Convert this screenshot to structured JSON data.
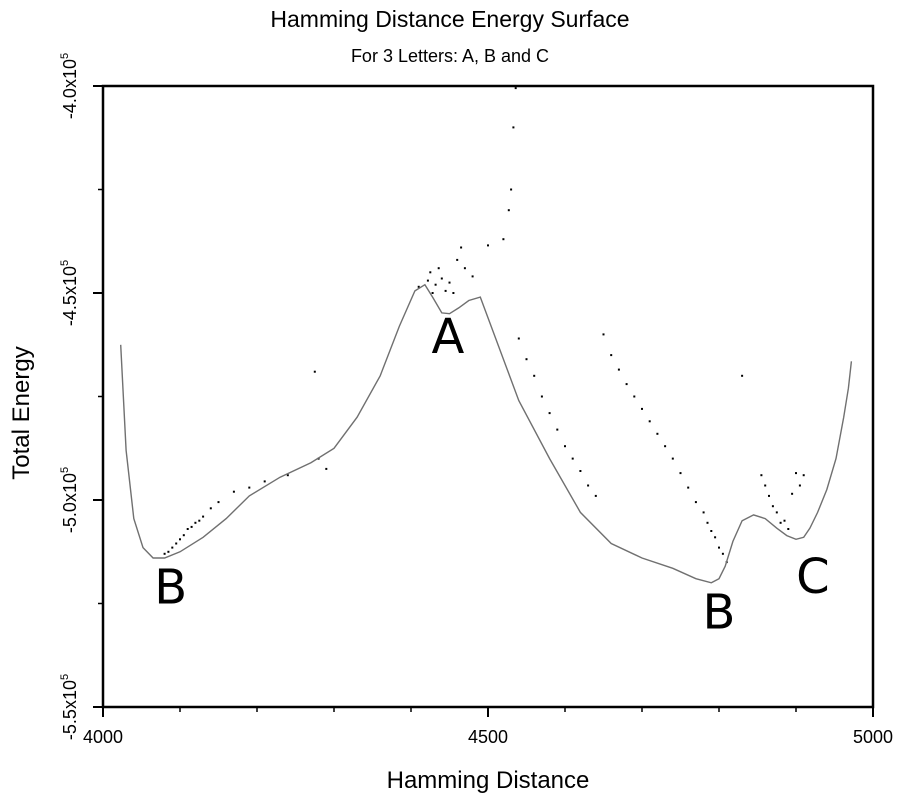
{
  "chart_data": {
    "type": "line",
    "title": "Hamming Distance Energy Surface",
    "subtitle": "For 3 Letters: A, B and C",
    "xlabel": "Hamming Distance",
    "ylabel": "Total Energy",
    "xlim": [
      4000,
      5000
    ],
    "ylim": [
      -550000,
      -400000
    ],
    "x_ticks": [
      {
        "value": 4000,
        "label": "4000"
      },
      {
        "value": 4500,
        "label": "4500"
      },
      {
        "value": 5000,
        "label": "5000"
      }
    ],
    "x_minor_ticks": [
      4100,
      4200,
      4300,
      4400,
      4600,
      4700,
      4800,
      4900
    ],
    "y_ticks": [
      {
        "value": -400000,
        "mantissa": "-4.0x10",
        "exponent": "5"
      },
      {
        "value": -450000,
        "mantissa": "-4.5x10",
        "exponent": "5"
      },
      {
        "value": -500000,
        "mantissa": "-5.0x10",
        "exponent": "5"
      },
      {
        "value": -550000,
        "mantissa": "-5.5x10",
        "exponent": "5"
      }
    ],
    "y_minor_ticks": [
      -425000,
      -475000,
      -525000
    ],
    "series": [
      {
        "name": "energy-surface",
        "x": [
          4023,
          4030,
          4040,
          4052,
          4065,
          4080,
          4100,
          4130,
          4160,
          4190,
          4230,
          4270,
          4300,
          4330,
          4360,
          4385,
          4405,
          4418,
          4428,
          4440,
          4450,
          4462,
          4475,
          4490,
          4510,
          4540,
          4580,
          4620,
          4660,
          4700,
          4740,
          4770,
          4790,
          4800,
          4808,
          4818,
          4830,
          4845,
          4860,
          4875,
          4888,
          4900,
          4910,
          4918,
          4928,
          4940,
          4952,
          4962,
          4968,
          4972
        ],
        "y": [
          -462500,
          -488000,
          -504500,
          -511500,
          -514000,
          -514000,
          -512500,
          -509000,
          -504500,
          -499000,
          -494500,
          -491000,
          -487500,
          -480000,
          -470000,
          -458000,
          -449500,
          -448000,
          -451000,
          -454800,
          -455000,
          -453600,
          -451800,
          -451000,
          -461000,
          -476000,
          -490000,
          -503000,
          -510500,
          -514000,
          -516500,
          -519000,
          -520000,
          -519000,
          -516000,
          -510000,
          -505000,
          -503600,
          -504500,
          -506800,
          -508600,
          -509500,
          -509000,
          -506800,
          -503000,
          -497500,
          -490000,
          -480000,
          -473000,
          -466500
        ]
      },
      {
        "name": "sampled-states",
        "x": [
          4080,
          4085,
          4090,
          4095,
          4100,
          4105,
          4110,
          4115,
          4120,
          4125,
          4130,
          4140,
          4150,
          4170,
          4190,
          4210,
          4240,
          4275,
          4280,
          4290,
          4410,
          4422,
          4425,
          4428,
          4432,
          4436,
          4440,
          4445,
          4450,
          4455,
          4460,
          4465,
          4470,
          4480,
          4500,
          4520,
          4527,
          4530,
          4533,
          4536,
          4540,
          4550,
          4560,
          4570,
          4580,
          4590,
          4600,
          4610,
          4620,
          4630,
          4640,
          4650,
          4660,
          4670,
          4680,
          4690,
          4700,
          4710,
          4720,
          4730,
          4740,
          4750,
          4760,
          4770,
          4780,
          4785,
          4790,
          4795,
          4800,
          4805,
          4810,
          4830,
          4855,
          4860,
          4865,
          4870,
          4875,
          4880,
          4885,
          4890,
          4895,
          4900,
          4905,
          4910
        ],
        "y": [
          -513000,
          -512500,
          -511500,
          -510500,
          -509500,
          -508500,
          -507000,
          -506500,
          -505500,
          -505000,
          -504000,
          -502000,
          -500500,
          -498000,
          -497000,
          -495500,
          -494000,
          -469000,
          -490000,
          -492500,
          -448500,
          -447000,
          -445000,
          -450000,
          -448000,
          -444000,
          -446500,
          -449500,
          -447500,
          -450000,
          -442000,
          -439000,
          -444000,
          -446000,
          -438500,
          -437000,
          -430000,
          -425000,
          -410000,
          -400500,
          -461000,
          -466000,
          -470000,
          -475000,
          -479000,
          -483000,
          -487000,
          -490000,
          -493000,
          -496500,
          -499000,
          -460000,
          -465000,
          -468500,
          -472000,
          -475000,
          -478000,
          -481000,
          -484000,
          -487000,
          -490000,
          -493500,
          -497000,
          -500500,
          -503000,
          -505500,
          -507500,
          -509000,
          -511500,
          -513000,
          -515000,
          -470000,
          -494000,
          -496500,
          -499000,
          -501500,
          -503000,
          -505500,
          -505000,
          -507000,
          -498500,
          -493500,
          -496500,
          -494000
        ]
      }
    ],
    "annotations": [
      {
        "text": "B",
        "x": 4088,
        "y": -525000
      },
      {
        "text": "A",
        "x": 4448,
        "y": -464500
      },
      {
        "text": "B",
        "x": 4800,
        "y": -531000
      },
      {
        "text": "C",
        "x": 4922,
        "y": -522500
      }
    ]
  }
}
